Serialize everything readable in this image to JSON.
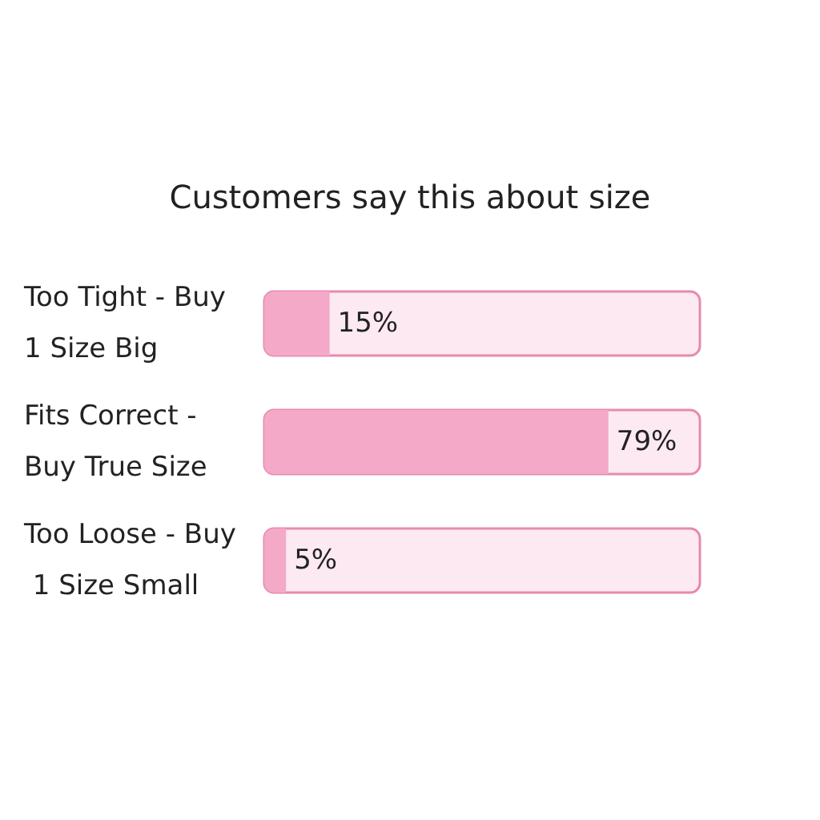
{
  "chart_data": {
    "type": "bar",
    "orientation": "horizontal",
    "title": "Customers say this about size",
    "categories": [
      "Too Tight - Buy 1 Size Big",
      "Fits Correct - Buy True Size",
      "Too Loose - Buy 1 Size Small"
    ],
    "values": [
      15,
      79,
      5
    ],
    "value_labels": [
      "15%",
      "79%",
      "5%"
    ],
    "color": "#f4a9c9",
    "xlim": [
      0,
      100
    ]
  }
}
